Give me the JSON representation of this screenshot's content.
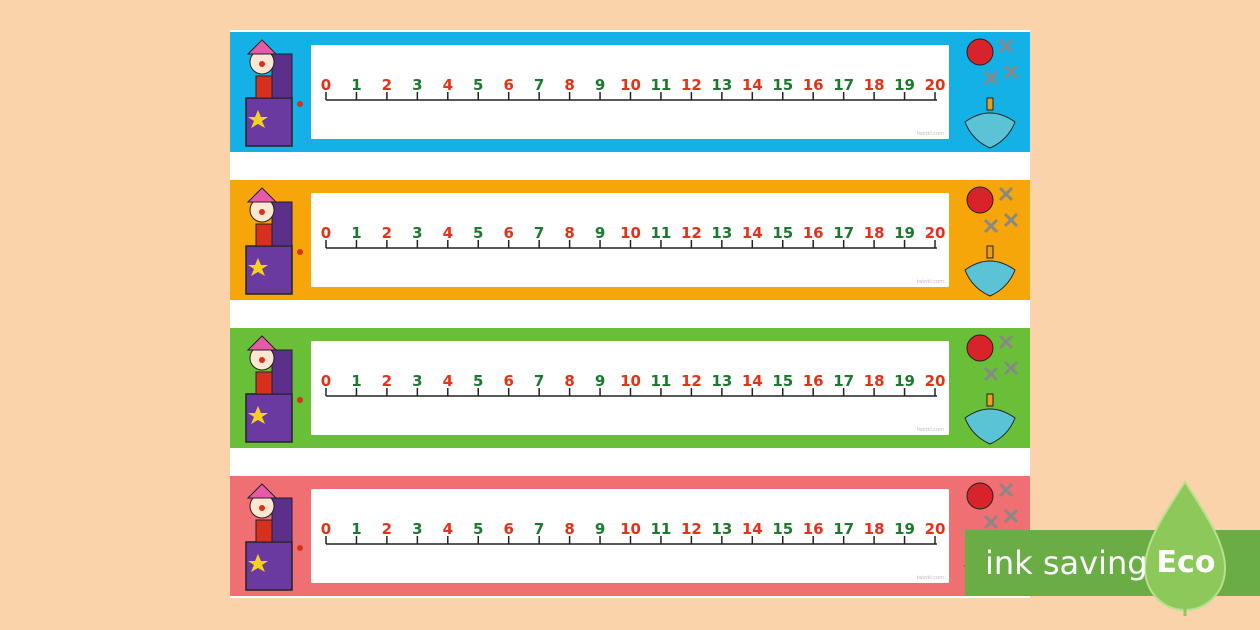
{
  "strips": [
    {
      "color": "#14b1e7",
      "numbers": [
        0,
        1,
        2,
        3,
        4,
        5,
        6,
        7,
        8,
        9,
        10,
        11,
        12,
        13,
        14,
        15,
        16,
        17,
        18,
        19,
        20
      ],
      "watermark": "twinkl.com"
    },
    {
      "color": "#f6a609",
      "numbers": [
        0,
        1,
        2,
        3,
        4,
        5,
        6,
        7,
        8,
        9,
        10,
        11,
        12,
        13,
        14,
        15,
        16,
        17,
        18,
        19,
        20
      ],
      "watermark": "twinkl.com"
    },
    {
      "color": "#6abf38",
      "numbers": [
        0,
        1,
        2,
        3,
        4,
        5,
        6,
        7,
        8,
        9,
        10,
        11,
        12,
        13,
        14,
        15,
        16,
        17,
        18,
        19,
        20
      ],
      "watermark": "twinkl.com"
    },
    {
      "color": "#ef6f72",
      "numbers": [
        0,
        1,
        2,
        3,
        4,
        5,
        6,
        7,
        8,
        9,
        10,
        11,
        12,
        13,
        14,
        15,
        16,
        17,
        18,
        19,
        20
      ],
      "watermark": "twinkl.com"
    }
  ],
  "label_colors": [
    "#e2321a",
    "#1c7a2e"
  ],
  "badge": {
    "text": "ink saving",
    "eco": "Eco"
  }
}
